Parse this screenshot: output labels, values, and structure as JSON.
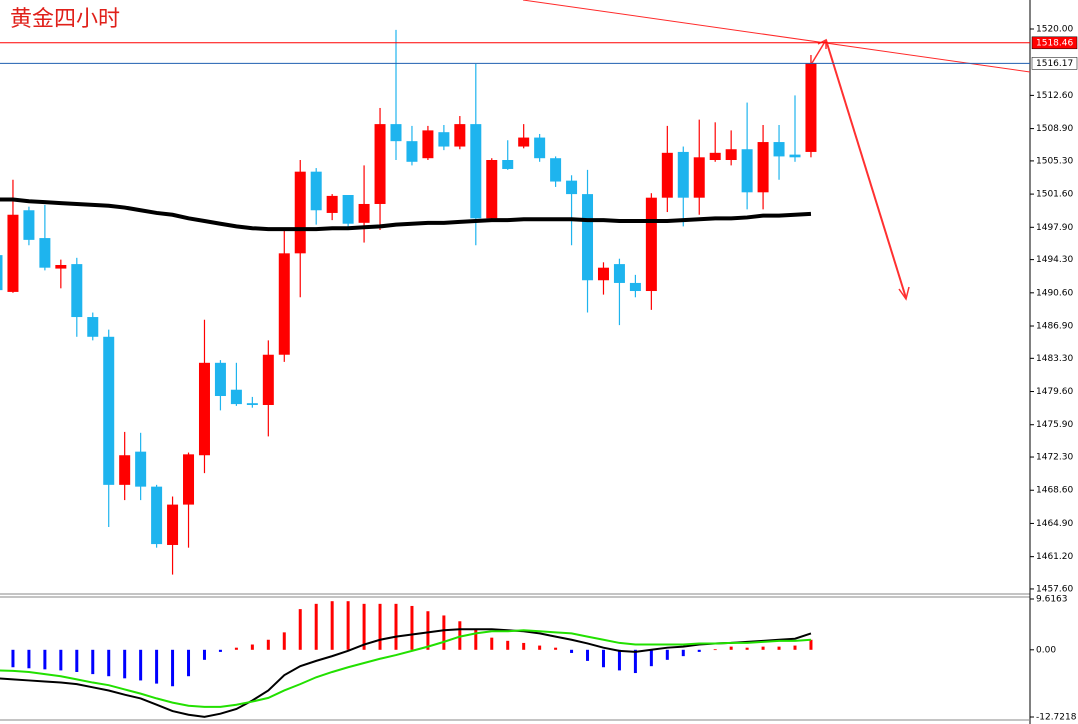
{
  "chart_data": [
    {
      "type": "candlestick",
      "title": "黄金四小时",
      "title_color": "#e0201a",
      "up_color": "#ff0000",
      "down_color": "#1eb4ee",
      "open": [
        1494.8,
        1490.7,
        1499.8,
        1496.7,
        1493.3,
        1493.8,
        1487.9,
        1485.7,
        1469.2,
        1472.9,
        1469.0,
        1462.5,
        1467.0,
        1472.5,
        1482.8,
        1479.8,
        1478.3,
        1478.1,
        1483.7,
        1495.0,
        1504.1,
        1499.5,
        1501.5,
        1498.4,
        1500.5,
        1509.4,
        1507.5,
        1505.6,
        1508.5,
        1506.9,
        1509.4,
        1498.9,
        1505.4,
        1506.9,
        1507.9,
        1505.6,
        1503.1,
        1501.6,
        1492.0,
        1493.8,
        1491.7,
        1490.8,
        1501.2,
        1506.3,
        1501.2,
        1505.4,
        1505.4,
        1506.6,
        1501.8,
        1507.4,
        1506.0,
        1506.3
      ],
      "high": [
        1494.8,
        1503.2,
        1500.2,
        1500.4,
        1494.3,
        1494.5,
        1488.4,
        1486.5,
        1475.1,
        1475.0,
        1469.2,
        1467.9,
        1472.8,
        1487.6,
        1483.1,
        1482.8,
        1479.0,
        1485.3,
        1497.8,
        1505.4,
        1504.5,
        1501.6,
        1501.5,
        1504.8,
        1511.2,
        1519.9,
        1509.2,
        1509.2,
        1509.3,
        1510.3,
        1516.1,
        1505.6,
        1507.6,
        1509.4,
        1508.3,
        1505.8,
        1503.7,
        1504.3,
        1494.0,
        1494.4,
        1492.6,
        1501.7,
        1509.2,
        1506.9,
        1509.9,
        1509.6,
        1508.7,
        1511.8,
        1509.3,
        1509.3,
        1512.6,
        1517.1
      ],
      "low": [
        1490.9,
        1490.6,
        1495.9,
        1493.1,
        1491.1,
        1485.7,
        1485.3,
        1464.5,
        1467.5,
        1467.5,
        1462.2,
        1459.2,
        1462.2,
        1470.5,
        1477.5,
        1478.0,
        1477.8,
        1474.6,
        1482.9,
        1490.1,
        1498.2,
        1498.7,
        1497.8,
        1496.2,
        1497.6,
        1505.4,
        1504.8,
        1505.4,
        1506.5,
        1506.6,
        1495.9,
        1498.7,
        1504.3,
        1506.7,
        1505.2,
        1502.4,
        1495.9,
        1488.4,
        1490.4,
        1487.0,
        1490.1,
        1488.7,
        1499.6,
        1498.0,
        1499.3,
        1505.2,
        1504.8,
        1499.9,
        1499.9,
        1503.2,
        1505.2,
        1505.7
      ],
      "close": [
        1490.9,
        1499.3,
        1496.5,
        1493.4,
        1493.7,
        1487.9,
        1485.7,
        1469.2,
        1472.5,
        1469.0,
        1462.6,
        1467.0,
        1472.6,
        1482.8,
        1479.1,
        1478.2,
        1478.1,
        1483.7,
        1495.0,
        1504.1,
        1499.8,
        1501.4,
        1498.3,
        1500.5,
        1509.4,
        1507.5,
        1505.2,
        1508.7,
        1506.9,
        1509.4,
        1498.9,
        1505.4,
        1504.4,
        1507.9,
        1505.6,
        1503.0,
        1501.6,
        1492.0,
        1493.4,
        1491.7,
        1490.8,
        1501.2,
        1506.2,
        1501.2,
        1505.7,
        1506.2,
        1506.6,
        1501.8,
        1507.4,
        1505.8,
        1505.7,
        1516.17
      ],
      "series": [
        {
          "color": "#000000",
          "values": [
            1501.0,
            1501.0,
            1500.8,
            1500.7,
            1500.6,
            1500.5,
            1500.4,
            1500.3,
            1500.1,
            1499.8,
            1499.5,
            1499.3,
            1498.9,
            1498.6,
            1498.3,
            1498.0,
            1497.8,
            1497.7,
            1497.7,
            1497.7,
            1497.7,
            1497.8,
            1497.8,
            1497.9,
            1498.0,
            1498.2,
            1498.3,
            1498.4,
            1498.4,
            1498.5,
            1498.6,
            1498.7,
            1498.7,
            1498.8,
            1498.8,
            1498.8,
            1498.8,
            1498.7,
            1498.7,
            1498.6,
            1498.6,
            1498.6,
            1498.6,
            1498.7,
            1498.8,
            1498.9,
            1498.9,
            1499.0,
            1499.2,
            1499.2,
            1499.3,
            1499.4
          ]
        }
      ],
      "price_lines": [
        {
          "value": 1518.46,
          "color": "#ff0000",
          "label_bg": "#ff0000",
          "label_color": "#ffffff"
        },
        {
          "value": 1516.17,
          "color": "#1f5fb0",
          "label_bg": "#ffffff",
          "label_color": "#000000"
        }
      ],
      "ylim": [
        1457.26,
        1523.23
      ],
      "yticks": [
        {
          "value": 1520,
          "label": "1520.00"
        },
        {
          "value": 1512.6,
          "label": "1512.60"
        },
        {
          "value": 1508.9,
          "label": "1508.90"
        },
        {
          "value": 1505.3,
          "label": "1505.30"
        },
        {
          "value": 1501.6,
          "label": "1501.60"
        },
        {
          "value": 1497.9,
          "label": "1497.90"
        },
        {
          "value": 1494.3,
          "label": "1494.30"
        },
        {
          "value": 1490.6,
          "label": "1490.60"
        },
        {
          "value": 1486.9,
          "label": "1486.90"
        },
        {
          "value": 1483.3,
          "label": "1483.30"
        },
        {
          "value": 1479.6,
          "label": "1479.60"
        },
        {
          "value": 1475.9,
          "label": "1475.90"
        },
        {
          "value": 1472.3,
          "label": "1472.30"
        },
        {
          "value": 1468.6,
          "label": "1468.60"
        },
        {
          "value": 1464.9,
          "label": "1464.90"
        },
        {
          "value": 1461.2,
          "label": "1461.20"
        },
        {
          "value": 1457.6,
          "label": "1457.60"
        }
      ]
    },
    {
      "type": "bar",
      "positive_color": "#ff0000",
      "negative_color": "#0000ff",
      "values": [
        -3.1,
        -3.3,
        -3.5,
        -3.7,
        -3.9,
        -4.2,
        -4.6,
        -5.0,
        -5.4,
        -5.8,
        -6.4,
        -6.9,
        -5.0,
        -1.9,
        -0.4,
        0.4,
        1.0,
        1.9,
        3.3,
        7.7,
        8.7,
        9.2,
        9.2,
        8.7,
        8.7,
        8.7,
        8.3,
        7.3,
        6.5,
        5.4,
        3.9,
        2.3,
        1.7,
        1.3,
        0.8,
        0.4,
        -0.6,
        -2.1,
        -3.3,
        -3.9,
        -4.4,
        -3.1,
        -1.9,
        -1.2,
        -0.4,
        0.1,
        0.6,
        0.4,
        0.6,
        0.6,
        0.8,
        1.9
      ],
      "series": [
        {
          "color": "#000000",
          "values": [
            -5.4,
            -5.6,
            -5.8,
            -6.0,
            -6.2,
            -6.5,
            -7.1,
            -7.7,
            -8.5,
            -9.2,
            -10.4,
            -11.6,
            -12.3,
            -12.7,
            -12.1,
            -11.2,
            -9.6,
            -7.7,
            -4.8,
            -3.1,
            -2.1,
            -1.2,
            -0.2,
            1.0,
            1.9,
            2.5,
            2.9,
            3.3,
            3.7,
            3.9,
            3.9,
            3.9,
            3.7,
            3.5,
            3.1,
            2.5,
            1.9,
            1.2,
            0.4,
            -0.2,
            -0.4,
            0,
            0.4,
            0.6,
            1.0,
            1.2,
            1.3,
            1.5,
            1.7,
            1.9,
            2.1,
            3.1
          ]
        },
        {
          "color": "#22e000",
          "values": [
            -3.9,
            -4.0,
            -4.2,
            -4.6,
            -5.0,
            -5.6,
            -6.2,
            -6.7,
            -7.5,
            -8.3,
            -9.2,
            -10.0,
            -10.6,
            -10.8,
            -10.8,
            -10.4,
            -9.8,
            -9.1,
            -7.7,
            -6.5,
            -5.2,
            -4.2,
            -3.3,
            -2.5,
            -1.7,
            -1.0,
            -0.2,
            0.6,
            1.5,
            2.5,
            3.1,
            3.5,
            3.5,
            3.7,
            3.5,
            3.3,
            3.1,
            2.5,
            1.9,
            1.3,
            1.0,
            1.0,
            1.0,
            1.0,
            1.2,
            1.2,
            1.3,
            1.3,
            1.5,
            1.7,
            1.7,
            1.9
          ]
        }
      ],
      "ylim": [
        -12.7218,
        9.6163
      ],
      "yticks": [
        9.6163,
        {
          "value": 0,
          "label": "0.00"
        },
        -12.7218
      ]
    }
  ]
}
